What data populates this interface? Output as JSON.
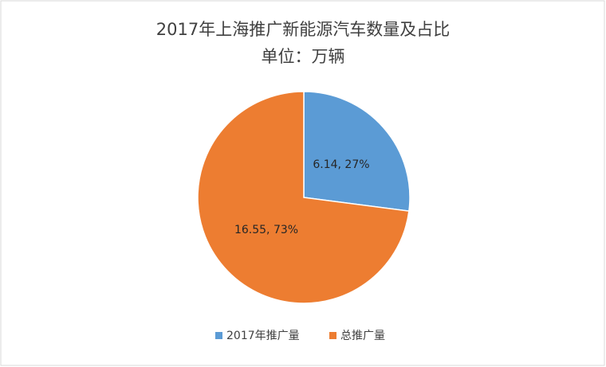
{
  "chart_data": {
    "type": "pie",
    "title": "2017年上海推广新能源汽车数量及占比",
    "subtitle": "单位：万辆",
    "categories": [
      "2017年推广量",
      "总推广量"
    ],
    "values": [
      6.14,
      16.55
    ],
    "value_labels": [
      "6.14, 27%",
      "16.55, 73%"
    ],
    "colors": [
      "#5b9bd5",
      "#ed7d31"
    ],
    "legend": "bottom"
  }
}
